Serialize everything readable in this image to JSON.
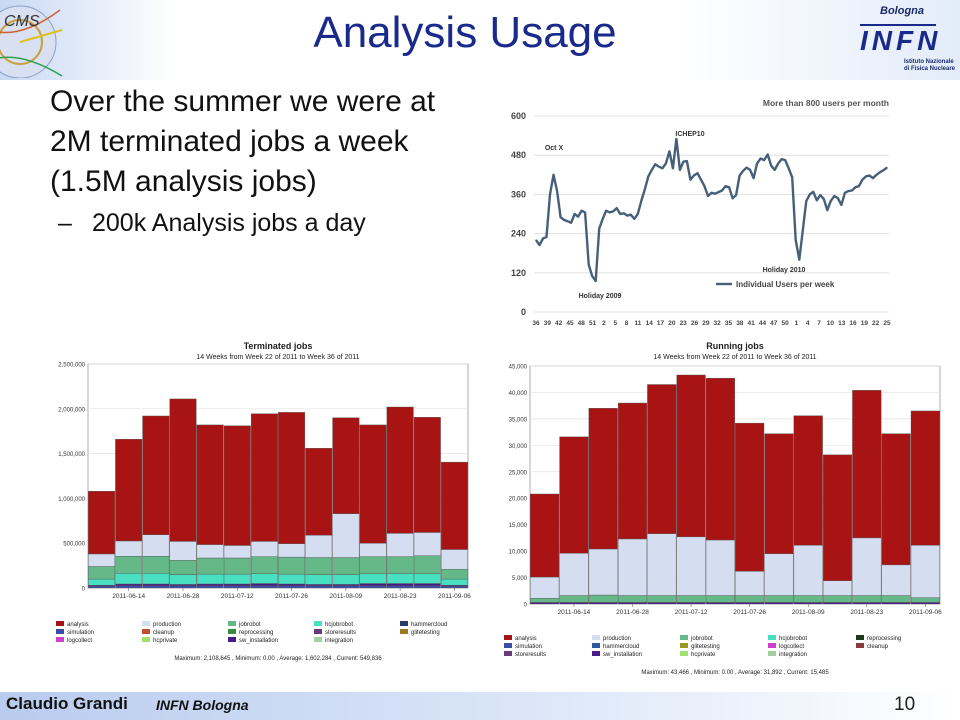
{
  "slide": {
    "title": "Analysis Usage",
    "bullet_main": "Over the summer we were at 2M terminated jobs a week (1.5M analysis jobs)",
    "bullet_sub": "200k Analysis jobs a day",
    "footer_author": "Claudio Grandi",
    "footer_institution": "INFN Bologna",
    "page_number": "10",
    "logo_infn": {
      "top": "Bologna",
      "main": "INFN",
      "sub1": "Istituto Nazionale",
      "sub2": "di Fisica Nucleare"
    },
    "logo_cms": "CMS"
  },
  "chart_data": [
    {
      "type": "line",
      "title": "More than 800 users per month",
      "series": [
        {
          "name": "Individual Users per week",
          "color": "#46607a",
          "values": [
            220,
            205,
            225,
            230,
            360,
            420,
            370,
            290,
            282,
            278,
            273,
            300,
            292,
            310,
            305,
            145,
            110,
            95,
            255,
            285,
            310,
            305,
            308,
            318,
            300,
            302,
            295,
            298,
            285,
            300,
            340,
            375,
            415,
            435,
            452,
            445,
            440,
            455,
            492,
            440,
            530,
            435,
            460,
            462,
            405,
            418,
            425,
            405,
            385,
            355,
            365,
            362,
            367,
            372,
            385,
            382,
            348,
            358,
            418,
            432,
            442,
            435,
            410,
            455,
            470,
            465,
            482,
            448,
            435,
            455,
            468,
            465,
            440,
            412,
            220,
            160,
            250,
            340,
            360,
            368,
            342,
            358,
            346,
            312,
            340,
            355,
            348,
            328,
            365,
            370,
            372,
            382,
            385,
            405,
            415,
            418,
            410,
            420,
            428,
            434,
            442
          ]
        }
      ],
      "ylim": [
        0,
        600
      ],
      "yticks": [
        0,
        120,
        240,
        360,
        480,
        600
      ],
      "xticks": [
        "36",
        "39",
        "42",
        "45",
        "48",
        "51",
        "2",
        "5",
        "8",
        "11",
        "14",
        "17",
        "20",
        "23",
        "26",
        "29",
        "32",
        "35",
        "38",
        "41",
        "44",
        "47",
        "50",
        "1",
        "4",
        "7",
        "10",
        "13",
        "16",
        "19",
        "22",
        "25"
      ],
      "annotations": [
        "Oct X",
        "Holiday 2009",
        "ICHEP10",
        "Holiday 2010"
      ]
    },
    {
      "type": "bar",
      "title": "Terminated jobs",
      "subtitle": "14 Weeks from Week 22 of 2011 to Week 36 of 2011",
      "ylim": [
        0,
        2500000
      ],
      "yticks": [
        "0",
        "500,000",
        "1,000,000",
        "1,500,000",
        "2,000,000",
        "2,500,000"
      ],
      "xticks": [
        "2011-06-14",
        "2011-06-28",
        "2011-07-12",
        "2011-07-26",
        "2011-08-09",
        "2011-08-23",
        "2011-09-06"
      ],
      "series": [
        {
          "name": "simulation",
          "color": "#3a4ea8",
          "values": [
            20000,
            25000,
            25000,
            25000,
            25000,
            25000,
            25000,
            25000,
            25000,
            25000,
            25000,
            25000,
            25000,
            20000
          ]
        },
        {
          "name": "sw_installation",
          "color": "#4b1a8a",
          "values": [
            10000,
            20000,
            20000,
            15000,
            20000,
            20000,
            25000,
            20000,
            15000,
            15000,
            25000,
            25000,
            25000,
            10000
          ]
        },
        {
          "name": "hcjobrobot",
          "color": "#48e0c0",
          "values": [
            70000,
            120000,
            120000,
            110000,
            110000,
            110000,
            110000,
            110000,
            110000,
            110000,
            110000,
            110000,
            110000,
            70000
          ]
        },
        {
          "name": "jobrobot",
          "color": "#65b888",
          "values": [
            140000,
            190000,
            190000,
            160000,
            180000,
            180000,
            190000,
            190000,
            190000,
            190000,
            190000,
            190000,
            200000,
            110000
          ]
        },
        {
          "name": "production",
          "color": "#d4def0",
          "values": [
            140000,
            170000,
            240000,
            210000,
            150000,
            140000,
            170000,
            150000,
            250000,
            490000,
            150000,
            260000,
            260000,
            220000
          ]
        },
        {
          "name": "analysis",
          "color": "#a81414",
          "values": [
            700000,
            1135000,
            1325000,
            1590000,
            1335000,
            1335000,
            1425000,
            1465000,
            970000,
            1070000,
            1320000,
            1410000,
            1285000,
            975000
          ]
        }
      ],
      "legend": [
        "analysis",
        "production",
        "jobrobot",
        "hcjobrobot",
        "hammercloud",
        "simulation",
        "cleanup",
        "reprocessing",
        "storeresults",
        "glitetesting",
        "logcollect",
        "hcprivate",
        "sw_installation",
        "integration"
      ],
      "legend_colors": [
        "#a81414",
        "#d4def0",
        "#65b888",
        "#48e0c0",
        "#2a3a6a",
        "#3a4ea8",
        "#c05030",
        "#3a8a3a",
        "#6a3a7a",
        "#9a7a20",
        "#d040d0",
        "#a0e070",
        "#4b1a8a",
        "#a0d0a0"
      ],
      "stats": "Maximum: 2,108,645 , Minimum: 0.00 , Average: 1,602,284 , Current: 549,836"
    },
    {
      "type": "bar",
      "title": "Running jobs",
      "subtitle": "14 Weeks from Week 22 of 2011 to Week 36 of 2011",
      "ylim": [
        0,
        45000
      ],
      "yticks": [
        "0",
        "5,000",
        "10,000",
        "15,000",
        "20,000",
        "25,000",
        "30,000",
        "35,000",
        "40,000",
        "45,000"
      ],
      "xticks": [
        "2011-06-14",
        "2011-06-28",
        "2011-07-12",
        "2011-07-26",
        "2011-08-09",
        "2011-08-23",
        "2011-09-06"
      ],
      "series": [
        {
          "name": "sw_installation",
          "color": "#4b1a8a",
          "values": [
            300,
            300,
            300,
            300,
            300,
            300,
            300,
            300,
            300,
            300,
            300,
            300,
            300,
            300
          ]
        },
        {
          "name": "jobrobot",
          "color": "#65b888",
          "values": [
            800,
            1300,
            1400,
            1300,
            1300,
            1300,
            1300,
            1300,
            1300,
            1300,
            1300,
            1300,
            1300,
            900
          ]
        },
        {
          "name": "production",
          "color": "#d4def0",
          "values": [
            4000,
            8000,
            8700,
            10700,
            11700,
            11100,
            10500,
            4600,
            7900,
            9500,
            2800,
            10900,
            5800,
            9900
          ]
        },
        {
          "name": "analysis",
          "color": "#a81414",
          "values": [
            15700,
            22000,
            26600,
            25700,
            28200,
            30600,
            30600,
            28000,
            22700,
            24500,
            23800,
            27900,
            24800,
            25400
          ]
        }
      ],
      "legend": [
        "analysis",
        "production",
        "jobrobot",
        "hcjobrobot",
        "reprocessing",
        "simulation",
        "hammercloud",
        "glitetesting",
        "logcollect",
        "cleanup",
        "storeresults",
        "sw_installation",
        "hcprivate",
        "integration"
      ],
      "legend_colors": [
        "#a81414",
        "#d4def0",
        "#65b888",
        "#48e0c0",
        "#1a3a1a",
        "#3a4ea8",
        "#2a5aa0",
        "#9a9a20",
        "#d040d0",
        "#8a3a3a",
        "#6a3a7a",
        "#4b1a8a",
        "#a0e070",
        "#a0d0a0"
      ],
      "stats": "Maximum: 43,466 , Minimum: 0.00 , Average: 31,892 , Current: 15,485"
    }
  ]
}
